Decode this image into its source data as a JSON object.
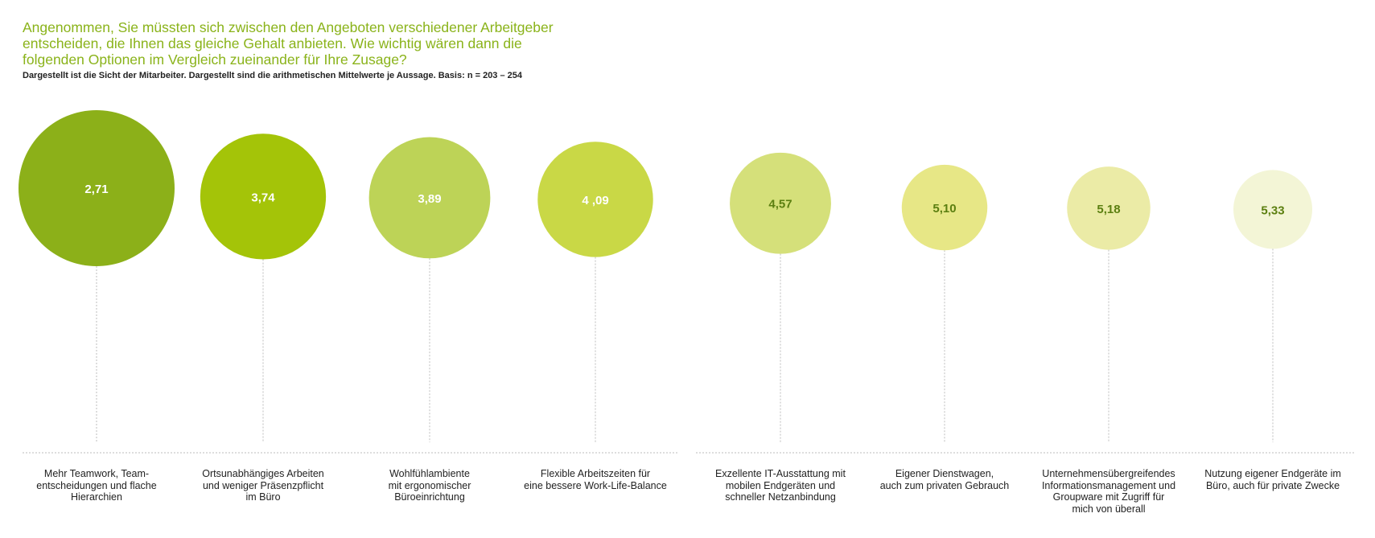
{
  "title": "Angenommen, Sie müssten sich zwischen den Angeboten verschiedener Arbeitgeber\nentscheiden, die Ihnen das gleiche Gehalt anbieten. Wie wichtig wären dann die\nfolgenden Optionen im Vergleich zueinander für Ihre Zusage?",
  "subtitle": "Dargestellt ist die Sicht der Mitarbeiter. Dargestellt sind die arithmetischen Mittelwerte je Aussage. Basis: n = 203 – 254",
  "colors": {
    "title": "#8ab31a",
    "value_light": "#ffffff",
    "value_dark": "#5b7f10",
    "connector": "#bdbdbd"
  },
  "chart_data": {
    "type": "bubble",
    "title": "Angenommen, Sie müssten sich zwischen den Angeboten verschiedener Arbeitgeber entscheiden, die Ihnen das gleiche Gehalt anbieten. Wie wichtig wären dann die folgenden Optionen im Vergleich zueinander für Ihre Zusage?",
    "subtitle": "Dargestellt ist die Sicht der Mitarbeiter. Dargestellt sind die arithmetischen Mittelwerte je Aussage. Basis: n = 203 – 254",
    "categories": [
      "Mehr Teamwork, Team-\nentscheidungen und flache\nHierarchien",
      "Ortsunabhängiges Arbeiten\nund weniger Präsenzpflicht\nim Büro",
      "Wohlfühlambiente\nmit ergonomischer\nBüroeinrichtung",
      "Flexible Arbeitszeiten für\neine bessere Work-Life-Balance",
      "Exzellente IT-Ausstattung mit\nmobilen Endgeräten und\nschneller Netzanbindung",
      "Eigener Dienstwagen,\nauch zum privaten Gebrauch",
      "Unternehmensübergreifendes\nInformationsmanagement und\nGroupware mit Zugriff für\nmich von überall",
      "Nutzung eigener Endgeräte im\nBüro, auch für private Zwecke"
    ],
    "values": [
      2.71,
      3.74,
      3.89,
      4.09,
      4.57,
      5.1,
      5.18,
      5.33
    ],
    "value_labels": [
      "2,71",
      "3,74",
      "3,89",
      "4 ,09",
      "4,57",
      "5,10",
      "5,18",
      "5,33"
    ],
    "bubble_colors": [
      "#8cb019",
      "#a4c408",
      "#bdd357",
      "#c9d846",
      "#d5e07a",
      "#e7e786",
      "#ebeba6",
      "#f3f5d6"
    ],
    "label_colors": [
      "#ffffff",
      "#ffffff",
      "#ffffff",
      "#ffffff",
      "#5b7f10",
      "#5b7f10",
      "#5b7f10",
      "#5b7f10"
    ],
    "legend": "none",
    "grid": false
  }
}
